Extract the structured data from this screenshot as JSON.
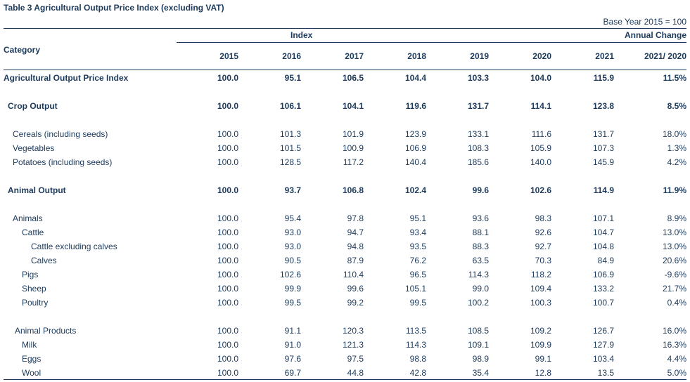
{
  "title": "Table 3    Agricultural Output Price Index (excluding VAT)",
  "base_year_note": "Base Year 2015 = 100",
  "headers": {
    "index_group": "Index",
    "annual_change_group": "Annual Change",
    "category": "Category",
    "years": [
      "2015",
      "2016",
      "2017",
      "2018",
      "2019",
      "2020",
      "2021"
    ],
    "change_col": "2021/ 2020"
  },
  "rows": [
    {
      "label": "Agricultural Output Price Index",
      "values": [
        "100.0",
        "95.1",
        "106.5",
        "104.4",
        "103.3",
        "104.0",
        "115.9"
      ],
      "change": "11.5%"
    },
    {
      "label": "Crop Output",
      "values": [
        "100.0",
        "106.1",
        "104.1",
        "119.6",
        "131.7",
        "114.1",
        "123.8"
      ],
      "change": "8.5%"
    },
    {
      "label": "Cereals (including seeds)",
      "values": [
        "100.0",
        "101.3",
        "101.9",
        "123.9",
        "133.1",
        "111.6",
        "131.7"
      ],
      "change": "18.0%"
    },
    {
      "label": "Vegetables",
      "values": [
        "100.0",
        "101.5",
        "100.9",
        "106.9",
        "108.3",
        "105.9",
        "107.3"
      ],
      "change": "1.3%"
    },
    {
      "label": "Potatoes (including seeds)",
      "values": [
        "100.0",
        "128.5",
        "117.2",
        "140.4",
        "185.6",
        "140.0",
        "145.9"
      ],
      "change": "4.2%"
    },
    {
      "label": "Animal Output",
      "values": [
        "100.0",
        "93.7",
        "106.8",
        "102.4",
        "99.6",
        "102.6",
        "114.9"
      ],
      "change": "11.9%"
    },
    {
      "label": "Animals",
      "values": [
        "100.0",
        "95.4",
        "97.8",
        "95.1",
        "93.6",
        "98.3",
        "107.1"
      ],
      "change": "8.9%"
    },
    {
      "label": "Cattle",
      "values": [
        "100.0",
        "93.0",
        "94.7",
        "93.4",
        "88.1",
        "92.6",
        "104.7"
      ],
      "change": "13.0%"
    },
    {
      "label": "Cattle excluding calves",
      "values": [
        "100.0",
        "93.0",
        "94.8",
        "93.5",
        "88.3",
        "92.7",
        "104.8"
      ],
      "change": "13.0%"
    },
    {
      "label": "Calves",
      "values": [
        "100.0",
        "90.5",
        "87.9",
        "76.2",
        "63.5",
        "70.3",
        "84.9"
      ],
      "change": "20.6%"
    },
    {
      "label": "Pigs",
      "values": [
        "100.0",
        "102.6",
        "110.4",
        "96.5",
        "114.3",
        "118.2",
        "106.9"
      ],
      "change": "-9.6%"
    },
    {
      "label": "Sheep",
      "values": [
        "100.0",
        "99.9",
        "99.6",
        "105.1",
        "99.0",
        "109.4",
        "133.2"
      ],
      "change": "21.7%"
    },
    {
      "label": "Poultry",
      "values": [
        "100.0",
        "99.5",
        "99.2",
        "99.5",
        "100.2",
        "100.3",
        "100.7"
      ],
      "change": "0.4%"
    },
    {
      "label": "Animal Products",
      "values": [
        "100.0",
        "91.1",
        "120.3",
        "113.5",
        "108.5",
        "109.2",
        "126.7"
      ],
      "change": "16.0%"
    },
    {
      "label": "Milk",
      "values": [
        "100.0",
        "91.0",
        "121.3",
        "114.3",
        "109.1",
        "109.9",
        "127.9"
      ],
      "change": "16.3%"
    },
    {
      "label": "Eggs",
      "values": [
        "100.0",
        "97.6",
        "97.5",
        "98.8",
        "98.9",
        "99.1",
        "103.4"
      ],
      "change": "4.4%"
    },
    {
      "label": "Wool",
      "values": [
        "100.0",
        "69.7",
        "44.8",
        "42.8",
        "35.4",
        "12.8",
        "13.5"
      ],
      "change": "5.0%"
    }
  ]
}
